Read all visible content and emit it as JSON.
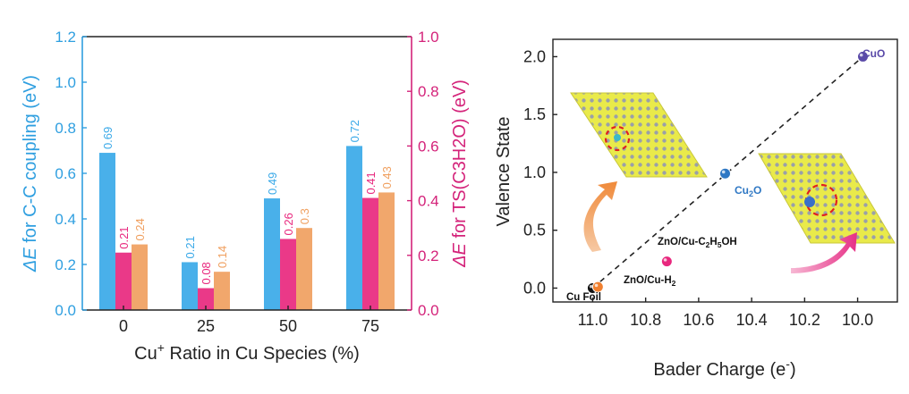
{
  "chart_data": [
    {
      "type": "bar",
      "title": "",
      "xlabel_main": "Cu",
      "xlabel_sup": "+",
      "xlabel_rest": " Ratio in Cu Species (%)",
      "ylabel_left_delta": "ΔE",
      "ylabel_left_rest": " for C-C coupling (eV)",
      "ylabel_right_delta": "ΔE",
      "ylabel_right_rest": " for TS(C3H2O) (eV)",
      "categories": [
        "0",
        "25",
        "50",
        "75"
      ],
      "ylim_left": [
        0,
        1.2
      ],
      "ylim_right": [
        0,
        1.0
      ],
      "yticks_left": [
        "0.0",
        "0.2",
        "0.4",
        "0.6",
        "0.8",
        "1.0",
        "1.2"
      ],
      "yticks_right": [
        "0.0",
        "0.2",
        "0.4",
        "0.6",
        "0.8",
        "1.0"
      ],
      "series": [
        {
          "name": "C-C coupling",
          "axis": "left",
          "color": "#3aa9e8",
          "values": [
            0.69,
            0.21,
            0.49,
            0.72
          ],
          "labels": [
            "0.69",
            "0.21",
            "0.49",
            "0.72"
          ]
        },
        {
          "name": "TS(C3H2O) pink",
          "axis": "right",
          "color": "#e8287e",
          "values": [
            0.21,
            0.08,
            0.26,
            0.41
          ],
          "labels": [
            "0.21",
            "0.08",
            "0.26",
            "0.41"
          ]
        },
        {
          "name": "TS(C3H2O) orange",
          "axis": "right",
          "color": "#f0a060",
          "values": [
            0.24,
            0.14,
            0.3,
            0.43
          ],
          "labels": [
            "0.24",
            "0.14",
            "0.3",
            "0.43"
          ]
        }
      ],
      "colors": {
        "left_axis": "#2f9fe0",
        "right_axis": "#d4237a"
      }
    },
    {
      "type": "scatter",
      "title": "",
      "xlabel": "Bader Charge (e",
      "xlabel_sup": "-",
      "xlabel_close": ")",
      "ylabel": "Valence State",
      "xlim": [
        11.15,
        9.85
      ],
      "ylim": [
        -0.12,
        2.15
      ],
      "xticks": [
        11.0,
        10.8,
        10.6,
        10.4,
        10.2,
        10.0
      ],
      "xtick_labels": [
        "11.0",
        "10.8",
        "10.6",
        "10.4",
        "10.2",
        "10.0"
      ],
      "yticks": [
        0.0,
        0.5,
        1.0,
        1.5,
        2.0
      ],
      "ytick_labels": [
        "0.0",
        "0.5",
        "1.0",
        "1.5",
        "2.0"
      ],
      "points": [
        {
          "x": 11.0,
          "y": 0.0,
          "color": "#111111"
        },
        {
          "x": 10.98,
          "y": 0.01,
          "color": "#f08030"
        },
        {
          "x": 10.72,
          "y": 0.23,
          "color": "#e8287e"
        },
        {
          "x": 10.5,
          "y": 0.99,
          "color": "#2f78c4"
        },
        {
          "x": 9.98,
          "y": 2.0,
          "color": "#5a4aa8"
        }
      ],
      "annotations": {
        "cu_foil": "Cu Foil",
        "zno_h2_main": "ZnO/Cu-H",
        "zno_h2_sub": "2",
        "zno_etoh_a": "ZnO/Cu-C",
        "zno_etoh_sub1": "2",
        "zno_etoh_b": "H",
        "zno_etoh_sub2": "5",
        "zno_etoh_c": "OH",
        "cu2o_main": "Cu",
        "cu2o_sub": "2",
        "cu2o_end": "O",
        "cuo": "CuO"
      },
      "fit_line": {
        "from": [
          11.0,
          0.0
        ],
        "to": [
          9.98,
          2.0
        ],
        "style": "dashed"
      }
    }
  ]
}
